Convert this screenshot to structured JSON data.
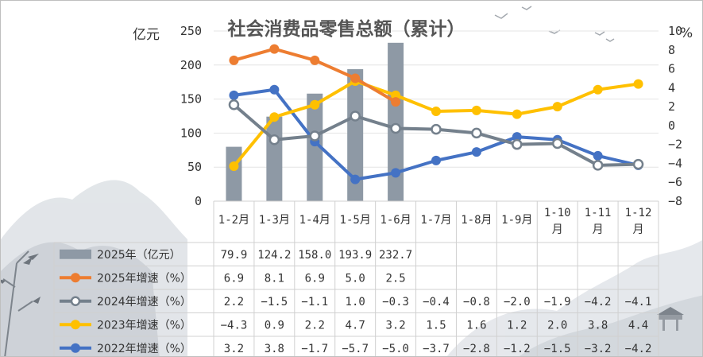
{
  "chart_data": {
    "type": "bar+line",
    "title": "社会消费品零售总额（累计）",
    "y_left_label": "亿元",
    "y_right_label": "%",
    "y_left_ticks": [
      "250",
      "200",
      "150",
      "100",
      "50",
      "0"
    ],
    "y_right_ticks": [
      "10",
      "8",
      "6",
      "4",
      "2",
      "0",
      "−2",
      "−4",
      "−6",
      "−8"
    ],
    "ylim_left": [
      0,
      250
    ],
    "ylim_right": [
      -8,
      10
    ],
    "categories": [
      [
        "1-2月"
      ],
      [
        "1-3月"
      ],
      [
        "1-4月"
      ],
      [
        "1-5月"
      ],
      [
        "1-6月"
      ],
      [
        "1-7月"
      ],
      [
        "1-8月"
      ],
      [
        "1-9月"
      ],
      [
        "1-10",
        "月"
      ],
      [
        "1-11",
        "月"
      ],
      [
        "1-12",
        "月"
      ]
    ],
    "bar_series": {
      "name": "2025年（亿元）",
      "color": "#8e99a5",
      "values": [
        79.9,
        124.2,
        158.0,
        193.9,
        232.7
      ],
      "labels": [
        "79.9",
        "124.2",
        "158.0",
        "193.9",
        "232.7"
      ]
    },
    "line_series": [
      {
        "name": "2025年增速（%）",
        "color": "#ed7d31",
        "marker": "filled",
        "values": [
          6.9,
          8.1,
          6.9,
          5.0,
          2.5
        ],
        "labels": [
          "6.9",
          "8.1",
          "6.9",
          "5.0",
          "2.5"
        ]
      },
      {
        "name": "2024年增速（%）",
        "color": "#74808c",
        "marker": "hollow",
        "values": [
          2.2,
          -1.5,
          -1.1,
          1.0,
          -0.3,
          -0.4,
          -0.8,
          -2.0,
          -1.9,
          -4.2,
          -4.1
        ],
        "labels": [
          "2.2",
          "−1.5",
          "−1.1",
          "1.0",
          "−0.3",
          "−0.4",
          "−0.8",
          "−2.0",
          "−1.9",
          "−4.2",
          "−4.1"
        ]
      },
      {
        "name": "2023年增速（%）",
        "color": "#ffc000",
        "marker": "filled",
        "values": [
          -4.3,
          0.9,
          2.2,
          4.7,
          3.2,
          1.5,
          1.6,
          1.2,
          2.0,
          3.8,
          4.4
        ],
        "labels": [
          "−4.3",
          "0.9",
          "2.2",
          "4.7",
          "3.2",
          "1.5",
          "1.6",
          "1.2",
          "2.0",
          "3.8",
          "4.4"
        ]
      },
      {
        "name": "2022年增速（%）",
        "color": "#4472c4",
        "marker": "filled",
        "values": [
          3.2,
          3.8,
          -1.7,
          -5.7,
          -5.0,
          -3.7,
          -2.8,
          -1.2,
          -1.5,
          -3.2,
          -4.2
        ],
        "labels": [
          "3.2",
          "3.8",
          "−1.7",
          "−5.7",
          "−5.0",
          "−3.7",
          "−2.8",
          "−1.2",
          "−1.5",
          "−3.2",
          "−4.2"
        ]
      }
    ],
    "grid": true,
    "legend_placement": "data-table-left"
  }
}
